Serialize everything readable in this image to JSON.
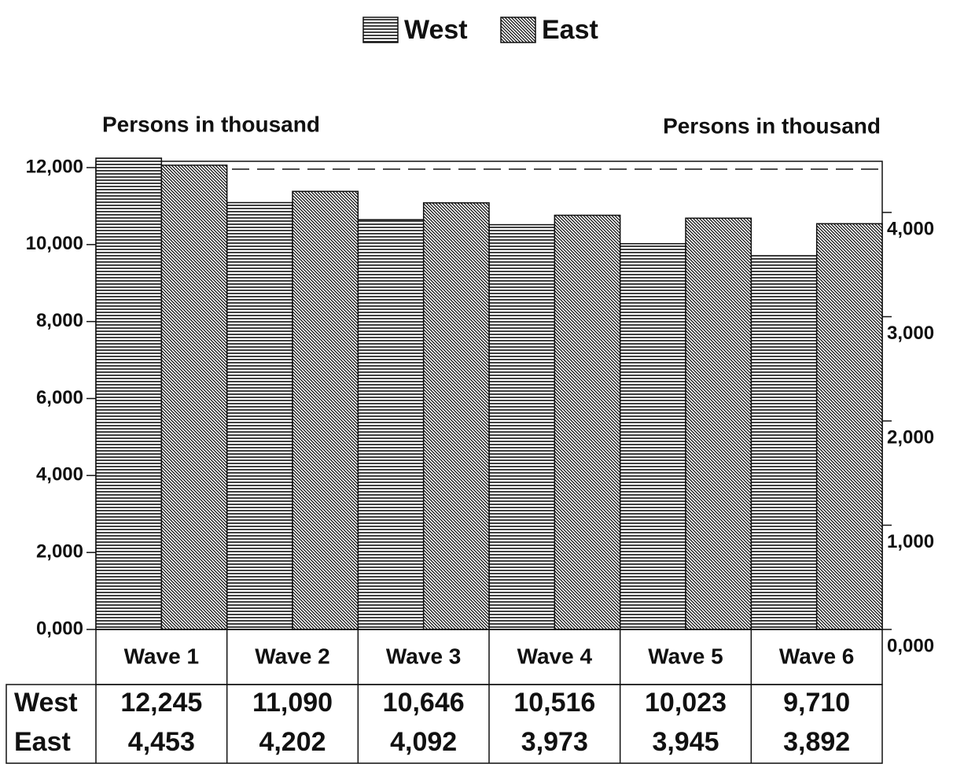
{
  "chart_data": {
    "type": "bar",
    "y_label": "Persons in thousand",
    "y2_label": "Persons in thousand",
    "categories": [
      "Wave 1",
      "Wave 2",
      "Wave 3",
      "Wave 4",
      "Wave 5",
      "Wave 6"
    ],
    "series": [
      {
        "name": "West",
        "color": "#111111",
        "values": [
          12245,
          11090,
          10646,
          10516,
          10023,
          9710
        ],
        "value_labels": [
          "12,245",
          "11,090",
          "10,646",
          "10,516",
          "10,023",
          "9,710"
        ]
      },
      {
        "name": "East",
        "color": "#111111",
        "axis": "y2",
        "values": [
          4453,
          4202,
          4092,
          3973,
          3945,
          3892
        ],
        "value_labels": [
          "4,453",
          "4,202",
          "4,092",
          "3,973",
          "3,945",
          "3,892"
        ]
      }
    ],
    "ylim": [
      0,
      12000
    ],
    "yticks": [
      {
        "value": 0,
        "label": "0,000"
      },
      {
        "value": 2000,
        "label": "2,000"
      },
      {
        "value": 4000,
        "label": "4,000"
      },
      {
        "value": 6000,
        "label": "6,000"
      },
      {
        "value": 8000,
        "label": "8,000"
      },
      {
        "value": 10000,
        "label": "10,000"
      },
      {
        "value": 12000,
        "label": "12,000"
      }
    ],
    "y2lim": [
      0,
      4000
    ],
    "y2ticks": [
      {
        "value": 0,
        "label": "0,000"
      },
      {
        "value": 1000,
        "label": "1,000"
      },
      {
        "value": 2000,
        "label": "2,000"
      },
      {
        "value": 3000,
        "label": "3,000"
      },
      {
        "value": 4000,
        "label": "4,000"
      }
    ],
    "legend": "top"
  }
}
